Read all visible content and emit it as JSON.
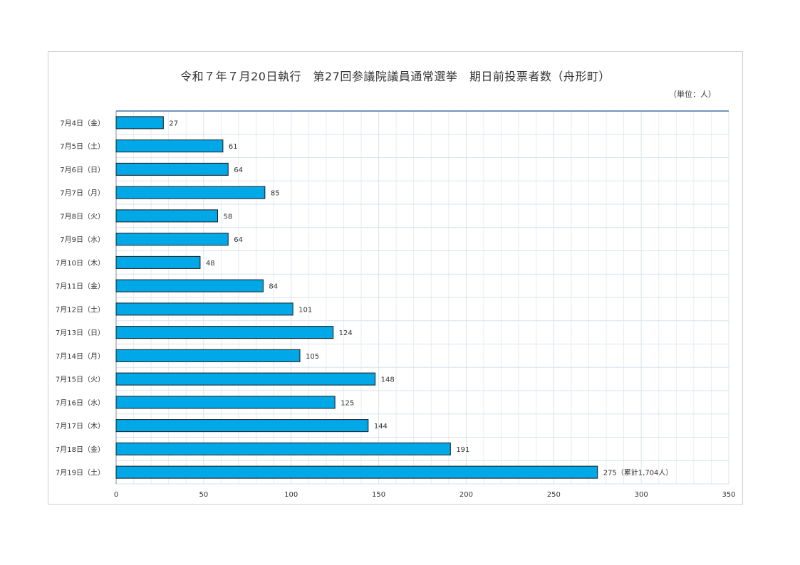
{
  "title": "令和７年７月20日執行　第27回参議院議員通常選挙　期日前投票者数（舟形町）",
  "unit_label": "（単位：人）",
  "colors": {
    "bar": "#00a8e8",
    "bar_stroke": "#1a1a1a",
    "grid": "#d9e3ec",
    "axis": "#4472a8"
  },
  "chart_data": {
    "type": "bar",
    "orientation": "horizontal",
    "title": "令和７年７月20日執行　第27回参議院議員通常選挙　期日前投票者数（舟形町）",
    "unit": "（単位：人）",
    "categories": [
      "7月4日（金）",
      "7月5日（土）",
      "7月6日（日）",
      "7月7日（月）",
      "7月8日（火）",
      "7月9日（水）",
      "7月10日（木）",
      "7月11日（金）",
      "7月12日（土）",
      "7月13日（日）",
      "7月14日（月）",
      "7月15日（火）",
      "7月16日（水）",
      "7月17日（木）",
      "7月18日（金）",
      "7月19日（土）"
    ],
    "values": [
      27,
      61,
      64,
      85,
      58,
      64,
      48,
      84,
      101,
      124,
      105,
      148,
      125,
      144,
      191,
      275
    ],
    "data_labels": [
      "27",
      "61",
      "64",
      "85",
      "58",
      "64",
      "48",
      "84",
      "101",
      "124",
      "105",
      "148",
      "125",
      "144",
      "191",
      "275（累計1,704人）"
    ],
    "xlim": [
      0,
      350
    ],
    "xticks": [
      0,
      50,
      100,
      150,
      200,
      250,
      300,
      350
    ],
    "xlabel": "",
    "ylabel": "",
    "grid": true
  }
}
